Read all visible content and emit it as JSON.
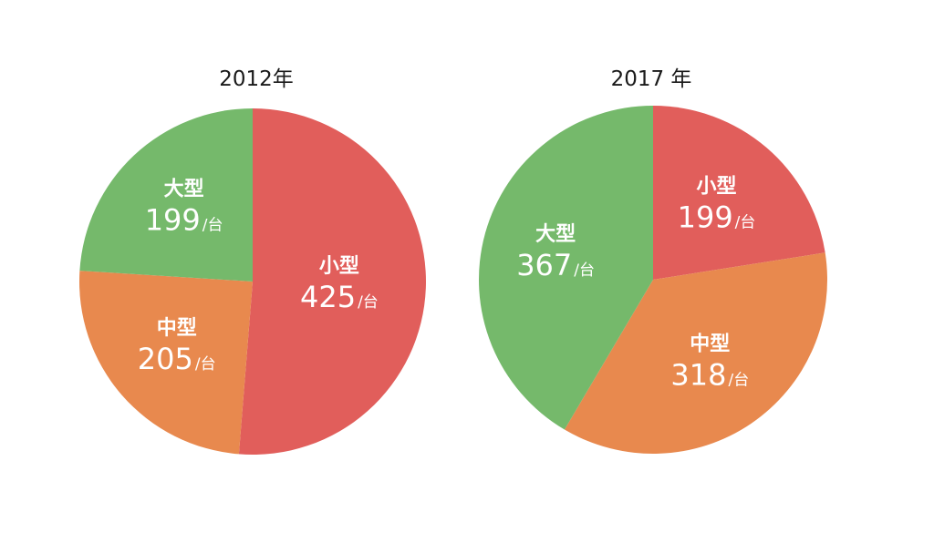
{
  "chart_data": [
    {
      "type": "pie",
      "title": "2012年",
      "start_angle_deg": 0,
      "direction": "clockwise",
      "slices": [
        {
          "label": "小型",
          "value": 425,
          "unit": "/台",
          "color": "#e15e5b"
        },
        {
          "label": "中型",
          "value": 205,
          "unit": "/台",
          "color": "#e8894e"
        },
        {
          "label": "大型",
          "value": 199,
          "unit": "/台",
          "color": "#75b96b"
        }
      ]
    },
    {
      "type": "pie",
      "title": "2017 年",
      "start_angle_deg": 0,
      "direction": "clockwise",
      "slices": [
        {
          "label": "小型",
          "value": 199,
          "unit": "/台",
          "color": "#e15e5b"
        },
        {
          "label": "中型",
          "value": 318,
          "unit": "/台",
          "color": "#e8894e"
        },
        {
          "label": "大型",
          "value": 367,
          "unit": "/台",
          "color": "#75b96b"
        }
      ]
    }
  ]
}
